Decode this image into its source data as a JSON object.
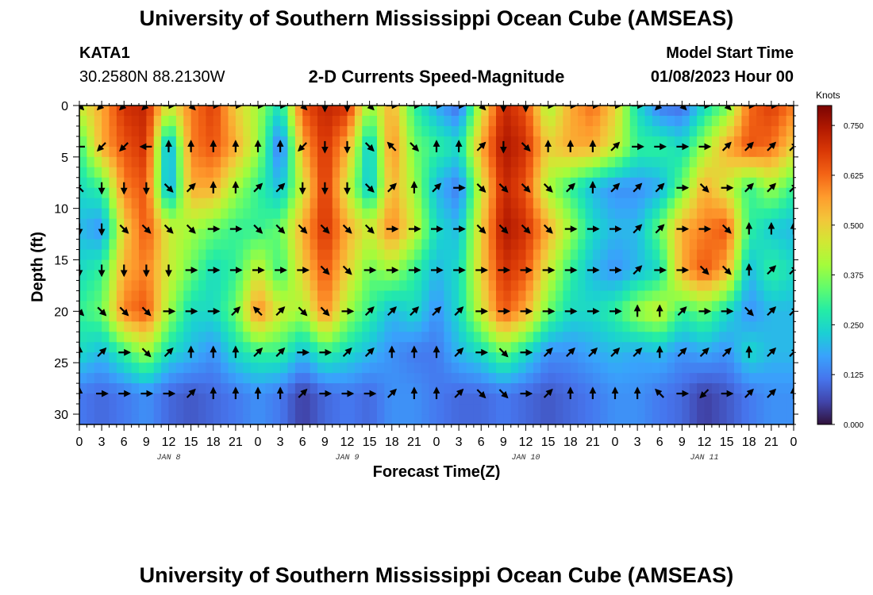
{
  "page": {
    "title": "University of Southern Mississippi Ocean Cube (AMSEAS)",
    "footer_title": "University of Southern Mississippi Ocean Cube (AMSEAS)"
  },
  "header": {
    "station": "KATA1",
    "coords": "30.2580N  88.2130W",
    "product": "2-D Currents Speed-Magnitude",
    "model_start_label": "Model Start Time",
    "model_start_value": "01/08/2023 Hour 00"
  },
  "chart_data": {
    "type": "heatmap",
    "title": "2-D Currents Speed-Magnitude",
    "xlabel": "Forecast Time(Z)",
    "ylabel": "Depth (ft)",
    "x_ticks": [
      "0",
      "3",
      "6",
      "9",
      "12",
      "15",
      "18",
      "21",
      "0",
      "3",
      "6",
      "9",
      "12",
      "15",
      "18",
      "21",
      "0",
      "3",
      "6",
      "9",
      "12",
      "15",
      "18",
      "21",
      "0",
      "3",
      "6",
      "9",
      "12",
      "15",
      "18",
      "21",
      "0"
    ],
    "date_labels": [
      {
        "label": "JAN 8",
        "hour": 12
      },
      {
        "label": "JAN 9",
        "hour": 36
      },
      {
        "label": "JAN 10",
        "hour": 60
      },
      {
        "label": "JAN 11",
        "hour": 84
      }
    ],
    "xlim": [
      0,
      96
    ],
    "ylim": [
      31,
      0
    ],
    "y_ticks": [
      0,
      5,
      10,
      15,
      20,
      25,
      30
    ],
    "colorbar": {
      "unit": "Knots",
      "range": [
        0,
        0.8
      ],
      "ticks": [
        "0.000",
        "0.125",
        "0.250",
        "0.375",
        "0.500",
        "0.625",
        "0.750"
      ],
      "tick_values": [
        0,
        0.125,
        0.25,
        0.375,
        0.5,
        0.625,
        0.75
      ],
      "colors": [
        "#30123b",
        "#4145ab",
        "#4675ed",
        "#39a2fc",
        "#1bcfd4",
        "#24eca6",
        "#61fc6c",
        "#a4fc3b",
        "#d1e834",
        "#f3c63a",
        "#fe9b2d",
        "#f36315",
        "#d93806",
        "#b11901",
        "#7a0402"
      ]
    },
    "depths": [
      0,
      4,
      8,
      12,
      16,
      20,
      24,
      28
    ],
    "hours": [
      0,
      3,
      6,
      9,
      12,
      15,
      18,
      21,
      24,
      27,
      30,
      33,
      36,
      39,
      42,
      45,
      48,
      51,
      54,
      57,
      60,
      63,
      66,
      69,
      72,
      75,
      78,
      81,
      84,
      87,
      90,
      93,
      96
    ],
    "speed": [
      [
        0.45,
        0.55,
        0.7,
        0.72,
        0.45,
        0.6,
        0.68,
        0.5,
        0.4,
        0.25,
        0.65,
        0.72,
        0.7,
        0.38,
        0.55,
        0.3,
        0.18,
        0.1,
        0.45,
        0.72,
        0.65,
        0.4,
        0.55,
        0.62,
        0.5,
        0.25,
        0.12,
        0.1,
        0.25,
        0.35,
        0.62,
        0.68,
        0.6
      ],
      [
        0.3,
        0.55,
        0.65,
        0.7,
        0.15,
        0.6,
        0.65,
        0.55,
        0.4,
        0.1,
        0.55,
        0.7,
        0.55,
        0.2,
        0.6,
        0.35,
        0.3,
        0.25,
        0.55,
        0.75,
        0.7,
        0.5,
        0.55,
        0.55,
        0.45,
        0.3,
        0.3,
        0.25,
        0.4,
        0.55,
        0.65,
        0.62,
        0.5
      ],
      [
        0.25,
        0.3,
        0.6,
        0.65,
        0.15,
        0.55,
        0.55,
        0.4,
        0.3,
        0.2,
        0.45,
        0.7,
        0.45,
        0.2,
        0.55,
        0.4,
        0.2,
        0.12,
        0.45,
        0.72,
        0.65,
        0.4,
        0.3,
        0.2,
        0.15,
        0.15,
        0.18,
        0.35,
        0.55,
        0.45,
        0.3,
        0.4,
        0.3
      ],
      [
        0.2,
        0.15,
        0.5,
        0.65,
        0.45,
        0.4,
        0.35,
        0.3,
        0.3,
        0.35,
        0.55,
        0.7,
        0.55,
        0.45,
        0.6,
        0.45,
        0.25,
        0.2,
        0.5,
        0.75,
        0.7,
        0.55,
        0.4,
        0.25,
        0.2,
        0.2,
        0.35,
        0.55,
        0.6,
        0.65,
        0.3,
        0.22,
        0.2
      ],
      [
        0.25,
        0.3,
        0.55,
        0.6,
        0.45,
        0.35,
        0.25,
        0.3,
        0.45,
        0.3,
        0.5,
        0.65,
        0.5,
        0.35,
        0.4,
        0.3,
        0.2,
        0.25,
        0.5,
        0.7,
        0.65,
        0.45,
        0.3,
        0.2,
        0.15,
        0.2,
        0.25,
        0.55,
        0.65,
        0.55,
        0.2,
        0.3,
        0.25
      ],
      [
        0.3,
        0.35,
        0.6,
        0.65,
        0.4,
        0.25,
        0.25,
        0.35,
        0.6,
        0.45,
        0.4,
        0.6,
        0.4,
        0.3,
        0.2,
        0.25,
        0.15,
        0.25,
        0.45,
        0.65,
        0.55,
        0.35,
        0.25,
        0.25,
        0.3,
        0.4,
        0.45,
        0.3,
        0.35,
        0.25,
        0.15,
        0.2,
        0.2
      ],
      [
        0.25,
        0.2,
        0.3,
        0.4,
        0.25,
        0.2,
        0.15,
        0.25,
        0.3,
        0.3,
        0.2,
        0.3,
        0.25,
        0.2,
        0.15,
        0.12,
        0.12,
        0.2,
        0.25,
        0.35,
        0.25,
        0.15,
        0.15,
        0.18,
        0.2,
        0.18,
        0.2,
        0.15,
        0.18,
        0.15,
        0.25,
        0.2,
        0.2
      ],
      [
        0.12,
        0.1,
        0.12,
        0.15,
        0.1,
        0.08,
        0.1,
        0.12,
        0.15,
        0.12,
        0.05,
        0.1,
        0.12,
        0.1,
        0.15,
        0.15,
        0.12,
        0.1,
        0.1,
        0.12,
        0.1,
        0.08,
        0.1,
        0.12,
        0.15,
        0.15,
        0.12,
        0.1,
        0.05,
        0.08,
        0.12,
        0.15,
        0.15
      ]
    ],
    "direction_deg": [
      [
        135,
        225,
        225,
        225,
        90,
        135,
        90,
        90,
        90,
        90,
        135,
        180,
        180,
        135,
        90,
        90,
        90,
        90,
        135,
        180,
        180,
        90,
        90,
        90,
        90,
        90,
        225,
        135,
        90,
        135,
        90,
        90,
        90
      ],
      [
        270,
        225,
        225,
        270,
        0,
        0,
        0,
        0,
        0,
        0,
        225,
        180,
        180,
        135,
        315,
        135,
        0,
        0,
        45,
        180,
        135,
        0,
        0,
        0,
        45,
        90,
        90,
        90,
        90,
        45,
        45,
        45,
        45
      ],
      [
        315,
        180,
        180,
        180,
        135,
        45,
        0,
        0,
        45,
        45,
        180,
        180,
        180,
        135,
        45,
        0,
        45,
        90,
        135,
        135,
        135,
        135,
        45,
        0,
        45,
        45,
        45,
        90,
        135,
        90,
        45,
        45,
        45
      ],
      [
        180,
        180,
        135,
        135,
        135,
        135,
        90,
        90,
        135,
        135,
        135,
        135,
        135,
        135,
        90,
        90,
        90,
        90,
        135,
        135,
        135,
        135,
        90,
        90,
        90,
        45,
        45,
        90,
        90,
        135,
        0,
        0,
        0
      ],
      [
        180,
        180,
        180,
        180,
        180,
        90,
        90,
        90,
        90,
        90,
        90,
        135,
        135,
        90,
        90,
        90,
        90,
        90,
        90,
        90,
        90,
        90,
        90,
        90,
        90,
        45,
        90,
        90,
        135,
        135,
        0,
        45,
        45
      ],
      [
        135,
        135,
        135,
        135,
        90,
        90,
        90,
        45,
        315,
        45,
        135,
        135,
        90,
        45,
        45,
        45,
        45,
        45,
        90,
        90,
        90,
        90,
        90,
        90,
        90,
        0,
        0,
        45,
        90,
        90,
        135,
        45,
        45
      ],
      [
        0,
        45,
        90,
        135,
        45,
        0,
        0,
        0,
        45,
        45,
        90,
        90,
        45,
        45,
        0,
        0,
        0,
        45,
        90,
        135,
        90,
        45,
        45,
        45,
        45,
        45,
        0,
        45,
        45,
        45,
        0,
        45,
        45
      ],
      [
        0,
        90,
        90,
        90,
        90,
        45,
        0,
        0,
        0,
        0,
        45,
        90,
        90,
        90,
        45,
        0,
        0,
        45,
        135,
        135,
        90,
        45,
        0,
        0,
        0,
        0,
        315,
        90,
        225,
        90,
        45,
        45,
        0
      ]
    ]
  }
}
